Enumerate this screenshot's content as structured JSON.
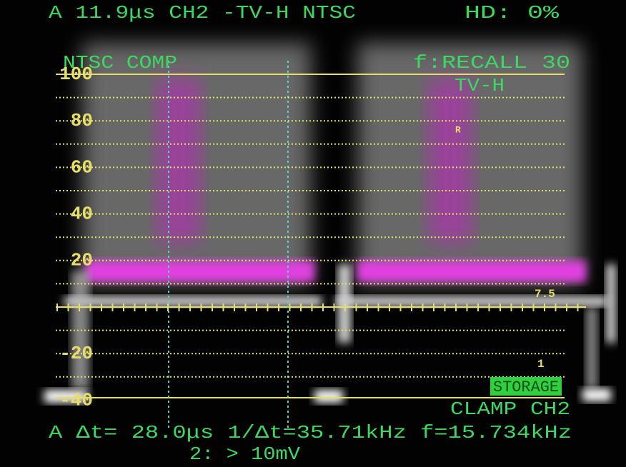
{
  "status": {
    "left": "A 11.9μs CH2 -TV-H NTSC",
    "right": "HD:  0%"
  },
  "screen": {
    "mode": "NTSC COMP",
    "recall": "f:RECALL 30",
    "sweep": "TV-H",
    "marker": "R",
    "storage": "STORAGE",
    "clamp": "CLAMP CH2"
  },
  "scale": {
    "labels": [
      "100",
      "80",
      "60",
      "40",
      "20",
      "-20",
      "-40"
    ],
    "right_upper": "7.5",
    "right_lower": "1"
  },
  "readout": {
    "line1": "A Δt=  28.0μs 1/Δt=35.71kHz  f=15.734kHz",
    "line2": "2: > 10mV"
  }
}
